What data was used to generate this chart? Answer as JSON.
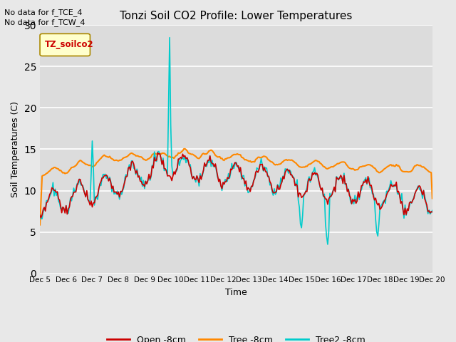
{
  "title": "Tonzi Soil CO2 Profile: Lower Temperatures",
  "ylabel": "Soil Temperatures (C)",
  "xlabel": "Time",
  "annotation_lines": [
    "No data for f_TCE_4",
    "No data for f_TCW_4"
  ],
  "legend_label": "TZ_soilco2",
  "ylim": [
    0,
    30
  ],
  "yticks": [
    0,
    5,
    10,
    15,
    20,
    25,
    30
  ],
  "facecolor": "#dcdcdc",
  "plot_bg": "#dcdcdc",
  "series": {
    "open": {
      "label": "Open -8cm",
      "color": "#cc0000",
      "lw": 1.2
    },
    "tree": {
      "label": "Tree -8cm",
      "color": "#ff8800",
      "lw": 1.5
    },
    "tree2": {
      "label": "Tree2 -8cm",
      "color": "#00cccc",
      "lw": 1.2
    }
  },
  "xtick_positions": [
    0,
    24,
    48,
    72,
    96,
    120,
    144,
    168,
    192,
    216,
    240,
    264,
    288,
    312,
    336,
    360
  ],
  "xtick_labels": [
    "Dec 5",
    "Dec 6",
    "Dec 7",
    "Dec 8",
    "Dec 9",
    "Dec 10",
    "Dec 11",
    "Dec 12",
    "Dec 13",
    "Dec 14",
    "Dec 15",
    "Dec 16",
    "Dec 17",
    "Dec 18",
    "Dec 19",
    "Dec 20"
  ]
}
